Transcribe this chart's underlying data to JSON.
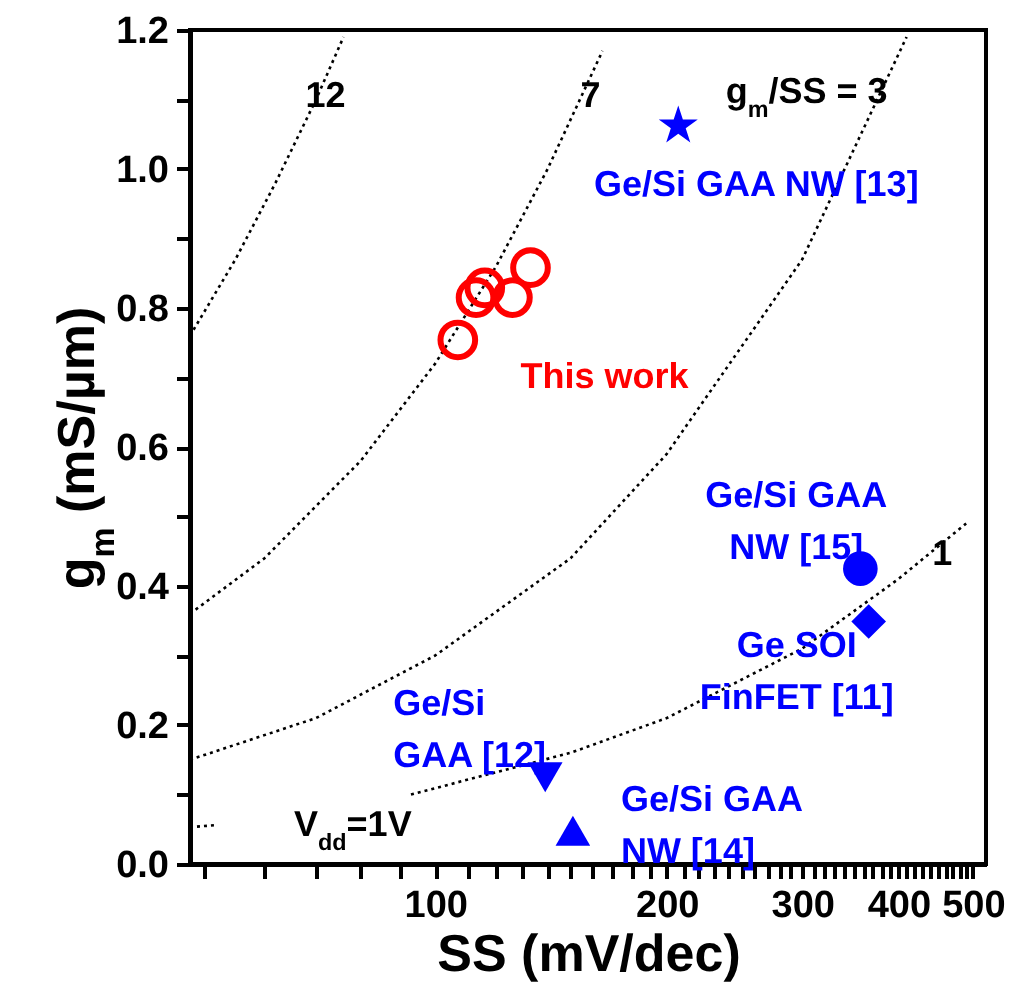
{
  "chart_data": {
    "type": "scatter",
    "xlabel": "SS (mV/dec)",
    "ylabel": "g$_{m}$ (mS/µm)",
    "log": "x",
    "grid": false,
    "xlim": [
      48,
      520
    ],
    "ylim": [
      0,
      1.2
    ],
    "xticks": [
      {
        "value": 50,
        "label": null
      },
      {
        "value": 60,
        "label": null
      },
      {
        "value": 70,
        "label": null
      },
      {
        "value": 80,
        "label": null
      },
      {
        "value": 90,
        "label": null
      },
      100,
      {
        "value": 110,
        "label": null
      },
      {
        "value": 120,
        "label": null
      },
      {
        "value": 130,
        "label": null
      },
      {
        "value": 140,
        "label": null
      },
      {
        "value": 150,
        "label": null
      },
      {
        "value": 160,
        "label": null
      },
      {
        "value": 170,
        "label": null
      },
      {
        "value": 180,
        "label": null
      },
      {
        "value": 190,
        "label": null
      },
      200,
      {
        "value": 210,
        "label": null
      },
      {
        "value": 220,
        "label": null
      },
      {
        "value": 230,
        "label": null
      },
      {
        "value": 240,
        "label": null
      },
      {
        "value": 250,
        "label": null
      },
      {
        "value": 260,
        "label": null
      },
      {
        "value": 270,
        "label": null
      },
      {
        "value": 280,
        "label": null
      },
      {
        "value": 290,
        "label": null
      },
      300,
      {
        "value": 310,
        "label": null
      },
      {
        "value": 320,
        "label": null
      },
      {
        "value": 330,
        "label": null
      },
      {
        "value": 340,
        "label": null
      },
      {
        "value": 350,
        "label": null
      },
      {
        "value": 360,
        "label": null
      },
      {
        "value": 370,
        "label": null
      },
      {
        "value": 380,
        "label": null
      },
      {
        "value": 390,
        "label": null
      },
      400,
      {
        "value": 410,
        "label": null
      },
      {
        "value": 420,
        "label": null
      },
      {
        "value": 430,
        "label": null
      },
      {
        "value": 440,
        "label": null
      },
      {
        "value": 450,
        "label": null
      },
      {
        "value": 460,
        "label": null
      },
      {
        "value": 470,
        "label": null
      },
      {
        "value": 480,
        "label": null
      },
      {
        "value": 490,
        "label": null
      },
      500
    ],
    "yticks": [
      {
        "value": 0,
        "label": "0.0"
      },
      {
        "value": 0.1,
        "label": null
      },
      0.2,
      {
        "value": 0.3,
        "label": null
      },
      0.4,
      {
        "value": 0.5,
        "label": null
      },
      0.6,
      {
        "value": 0.7,
        "label": null
      },
      0.8,
      {
        "value": 0.9,
        "label": null
      },
      {
        "value": 1,
        "label": "1.0"
      },
      {
        "value": 1.1,
        "label": null
      },
      1.2
    ],
    "series": [
      {
        "type": "line",
        "name": "12",
        "color": "#000000",
        "line_style": "dotted",
        "marker": "none",
        "x": [
          48,
          55,
          62,
          70,
          76
        ],
        "values": [
          0.76,
          0.87,
          0.98,
          1.1,
          1.19
        ]
      },
      {
        "type": "line",
        "name": "7",
        "color": "#000000",
        "line_style": "dotted",
        "marker": "none",
        "x": [
          48,
          60,
          80,
          100,
          120,
          140,
          165
        ],
        "values": [
          0.36,
          0.44,
          0.58,
          0.72,
          0.86,
          1.0,
          1.17
        ]
      },
      {
        "type": "line",
        "name": "g$_{m}$/SS = 3",
        "color": "#000000",
        "line_style": "dotted",
        "marker": "none",
        "x": [
          48,
          70,
          100,
          150,
          200,
          300,
          410
        ],
        "values": [
          0.15,
          0.21,
          0.3,
          0.44,
          0.59,
          0.87,
          1.19
        ]
      },
      {
        "type": "line",
        "name": "1",
        "color": "#000000",
        "line_style": "dotted",
        "marker": "none",
        "x": [
          48,
          52,
          70,
          93,
          150,
          200,
          300,
          400,
          490
        ],
        "values": [
          0.053,
          0.056,
          null,
          0.1,
          0.16,
          0.21,
          0.31,
          0.41,
          0.49
        ]
      },
      {
        "name": "This work",
        "color": "#ff0000",
        "marker": "circle-open",
        "x": [
          107,
          113,
          116,
          126,
          133
        ],
        "values": [
          0.754,
          0.815,
          0.829,
          0.815,
          0.858
        ]
      },
      {
        "name": "Ge/Si GAA NW [13]",
        "color": "#0000ff",
        "marker": "star",
        "x": [
          207
        ],
        "values": [
          1.062
        ]
      },
      {
        "name": "Ge/Si GAA NW [15]",
        "color": "#0000ff",
        "marker": "circle",
        "x": [
          357
        ],
        "values": [
          0.425
        ]
      },
      {
        "name": "Ge SOI FinFET [11]",
        "color": "#0000ff",
        "marker": "diamond",
        "x": [
          366
        ],
        "values": [
          0.349
        ]
      },
      {
        "name": "Ge/Si GAA [12]",
        "color": "#0000ff",
        "marker": "triangle-down",
        "x": [
          139
        ],
        "values": [
          0.125
        ]
      },
      {
        "name": "Ge/Si GAA NW [14]",
        "color": "#0000ff",
        "marker": "triangle",
        "x": [
          151
        ],
        "values": [
          0.048
        ]
      }
    ],
    "annotations": [
      "V$_{dd}$=1V"
    ]
  }
}
